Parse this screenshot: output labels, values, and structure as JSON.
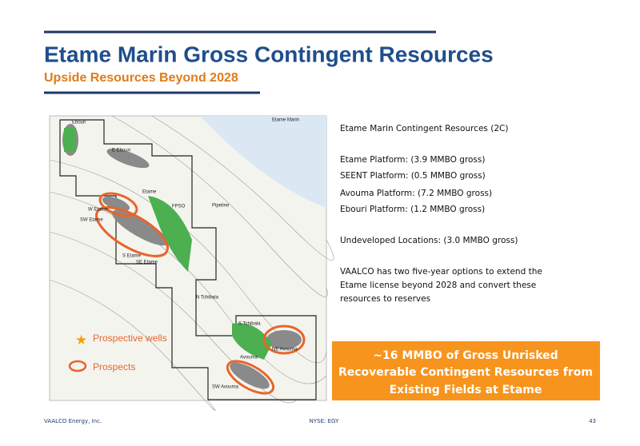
{
  "header": {
    "title": "Etame Marin Gross Contingent Resources",
    "subtitle": "Upside Resources Beyond 2028"
  },
  "map": {
    "labels": [
      "Etame Marin",
      "Ebouri",
      "E Ebouri",
      "Etame",
      "W Etame",
      "SW Etame",
      "FPSO",
      "Pipeline",
      "S Etame",
      "SE Etame",
      "N Tchibala",
      "S Tchibala",
      "Avouma",
      "NE Avouma",
      "SW Avouma"
    ],
    "legend": [
      "Prospective wells",
      "Prospects"
    ]
  },
  "body": {
    "heading": "Etame Marin Contingent Resources (2C)",
    "platforms": [
      "Etame Platform:  (3.9 MMBO gross)",
      "SEENT Platform:  (0.5 MMBO gross)",
      "Avouma Platform: (7.2 MMBO gross)",
      "Ebouri Platform: (1.2 MMBO gross)"
    ],
    "undeveloped": "Undeveloped Locations: (3.0 MMBO gross)",
    "options": [
      "VAALCO has two five-year options to extend the",
      "Etame license beyond 2028 and convert these",
      "resources to reserves"
    ]
  },
  "callout": [
    "~16 MMBO of Gross Unrisked",
    "Recoverable Contingent Resources from",
    "Existing Fields at Etame"
  ],
  "footer": {
    "company": "VAALCO Energy, Inc.",
    "ticker": "NYSE: EGY",
    "page": "43"
  }
}
